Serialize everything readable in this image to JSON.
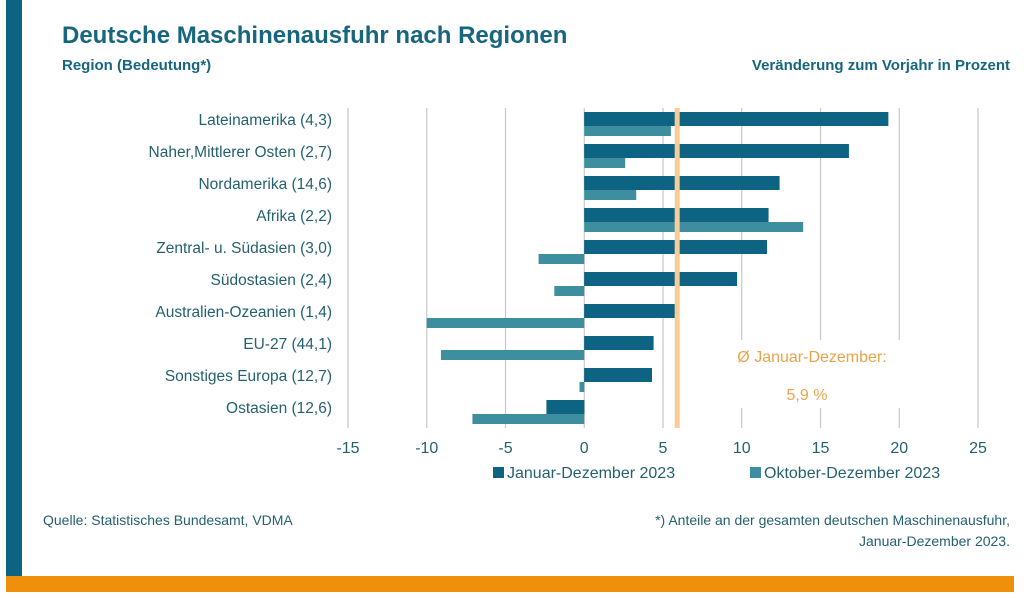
{
  "title": "Deutsche Maschinenausfuhr nach Regionen",
  "subtitle_left": "Region (Bedeutung*)",
  "subtitle_right": "Veränderung zum Vorjahr in Prozent",
  "source": "Quelle: Statistisches Bundesamt, VDMA",
  "footnote_line1": "*) Anteile an der gesamten deutschen Maschinenausfuhr,",
  "footnote_line2": "Januar-Dezember 2023.",
  "colors": {
    "series1": "#0d6382",
    "series2": "#3f8ea0",
    "average": "#f9cc99",
    "average_text": "#eba34a",
    "accent_bar": "#f0900a",
    "grid": "#c8c8c8",
    "label": "#24616f"
  },
  "chart_data": {
    "type": "bar",
    "orientation": "horizontal",
    "title": "Deutsche Maschinenausfuhr nach Regionen",
    "xlabel": "Veränderung zum Vorjahr in Prozent",
    "ylabel": "Region (Bedeutung*)",
    "xlim": [
      -15,
      25
    ],
    "xticks": [
      -15,
      -10,
      -5,
      0,
      5,
      10,
      15,
      20,
      25
    ],
    "xtick_labels": [
      "-15",
      "-10",
      "-5",
      "0",
      "5",
      "10",
      "15",
      "20",
      "25"
    ],
    "grid": true,
    "legend_position": "bottom",
    "categories": [
      "Lateinamerika (4,3)",
      "Naher,Mittlerer Osten (2,7)",
      "Nordamerika (14,6)",
      "Afrika (2,2)",
      "Zentral- u. Südasien (3,0)",
      "Südostasien (2,4)",
      "Australien-Ozeanien (1,4)",
      "EU-27 (44,1)",
      "Sonstiges Europa (12,7)",
      "Ostasien (12,6)"
    ],
    "series": [
      {
        "name": "Januar-Dezember 2023",
        "values": [
          19.3,
          16.8,
          12.4,
          11.7,
          11.6,
          9.7,
          5.8,
          4.4,
          4.3,
          -2.4
        ]
      },
      {
        "name": "Oktober-Dezember 2023",
        "values": [
          5.5,
          2.6,
          3.3,
          13.9,
          -2.9,
          -1.9,
          -10.0,
          -9.1,
          -0.3,
          -7.1
        ]
      }
    ],
    "reference_line": {
      "value": 5.9,
      "label_line1": "Ø Januar-Dezember:",
      "label_line2": "5,9 %"
    }
  }
}
